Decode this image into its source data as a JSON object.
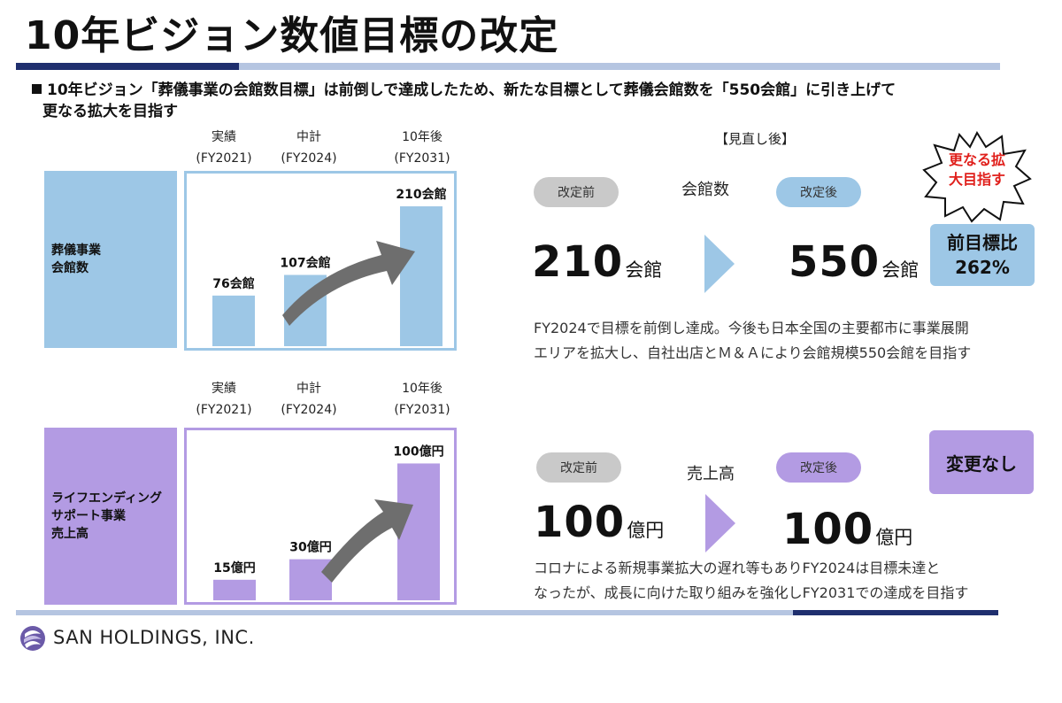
{
  "title": "10年ビジョン数値目標の改定",
  "lead": {
    "line1": "10年ビジョン「葬儀事業の会館数目標」は前倒しで達成したため、新たな目標として葬儀会館数を「550会館」に引き上げて",
    "line2": "更なる拡大を目指す"
  },
  "columns": {
    "actual": [
      "実績",
      "(FY2021)"
    ],
    "midterm": [
      "中計",
      "(FY2024)"
    ],
    "tenyear": [
      "10年後",
      "(FY2031)"
    ]
  },
  "review_header": "【見直し後】",
  "colors": {
    "blue": "#9dc7e6",
    "purple": "#b39be3",
    "navy": "#1f2f6e",
    "red": "#e0201c",
    "arrow": "#6e6e6e"
  },
  "chart_data": [
    {
      "type": "bar",
      "row_label": "葬儀事業\n会館数",
      "categories": [
        "実績 (FY2021)",
        "中計 (FY2024)",
        "10年後 (FY2031)"
      ],
      "values": [
        76,
        107,
        210
      ],
      "labels": [
        "76会館",
        "107会館",
        "210会館"
      ],
      "unit": "会館",
      "color": "#9dc7e6",
      "ylim": [
        0,
        230
      ]
    },
    {
      "type": "bar",
      "row_label": "ライフエンディング\nサポート事業\n売上高",
      "categories": [
        "実績 (FY2021)",
        "中計 (FY2024)",
        "10年後 (FY2031)"
      ],
      "values": [
        15,
        30,
        100
      ],
      "labels": [
        "15億円",
        "30億円",
        "100億円"
      ],
      "unit": "億円",
      "color": "#b39be3",
      "ylim": [
        0,
        110
      ]
    }
  ],
  "funeral": {
    "before_label": "改定前",
    "metric": "会館数",
    "after_label": "改定後",
    "before_value": "210",
    "before_unit": "会館",
    "after_value": "550",
    "after_unit": "会館",
    "text1": "FY2024で目標を前倒し達成。今後も日本全国の主要都市に事業展開",
    "text2": "エリアを拡大し、自社出店とＭ＆Ａにより会館規模550会館を目指す",
    "burst_text": "更なる拡\n大目指す",
    "badge_line1": "前目標比",
    "badge_line2": "262%"
  },
  "lifeending": {
    "before_label": "改定前",
    "metric": "売上高",
    "after_label": "改定後",
    "before_value": "100",
    "before_unit": "億円",
    "after_value": "100",
    "after_unit": "億円",
    "text1": "コロナによる新規事業拡大の遅れ等もありFY2024は目標未達と",
    "text2": "なったが、成長に向けた取り組みを強化しFY2031での達成を目指す",
    "badge": "変更なし"
  },
  "footer": {
    "company": "SAN HOLDINGS, INC."
  }
}
